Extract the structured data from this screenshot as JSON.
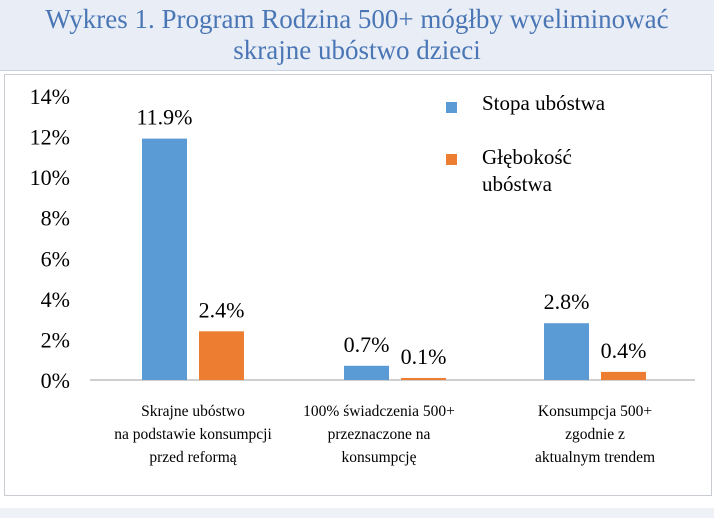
{
  "chart_data": {
    "type": "bar",
    "title": [
      "Wykres 1. Program Rodzina 500+ mógłby wyeliminować",
      "skrajne ubóstwo dzieci"
    ],
    "categories": [
      [
        "Skrajne ubóstwo",
        "na podstawie konsumpcji",
        "przed reformą"
      ],
      [
        "100% świadczenia 500+",
        "przeznaczone na",
        "konsumpcję"
      ],
      [
        "Konsumpcja 500+",
        "zgodnie z",
        "aktualnym trendem"
      ]
    ],
    "series": [
      {
        "name": "Stopa ubóstwa",
        "values": [
          11.9,
          0.7,
          2.8
        ],
        "labels": [
          "11.9%",
          "0.7%",
          "2.8%"
        ],
        "color": "#5b9bd5"
      },
      {
        "name": "Głębokość ubóstwa",
        "name_lines": [
          "Głębokość",
          "ubóstwa"
        ],
        "values": [
          2.4,
          0.1,
          0.4
        ],
        "labels": [
          "2.4%",
          "0.1%",
          "0.4%"
        ],
        "color": "#ed7d31"
      }
    ],
    "ylim": [
      0,
      14
    ],
    "yticks": [
      0,
      2,
      4,
      6,
      8,
      10,
      12,
      14
    ],
    "ytick_labels": [
      "0%",
      "2%",
      "4%",
      "6%",
      "8%",
      "10%",
      "12%",
      "14%"
    ],
    "grid": false,
    "legend": "top-right",
    "xlabel": "",
    "ylabel": ""
  }
}
